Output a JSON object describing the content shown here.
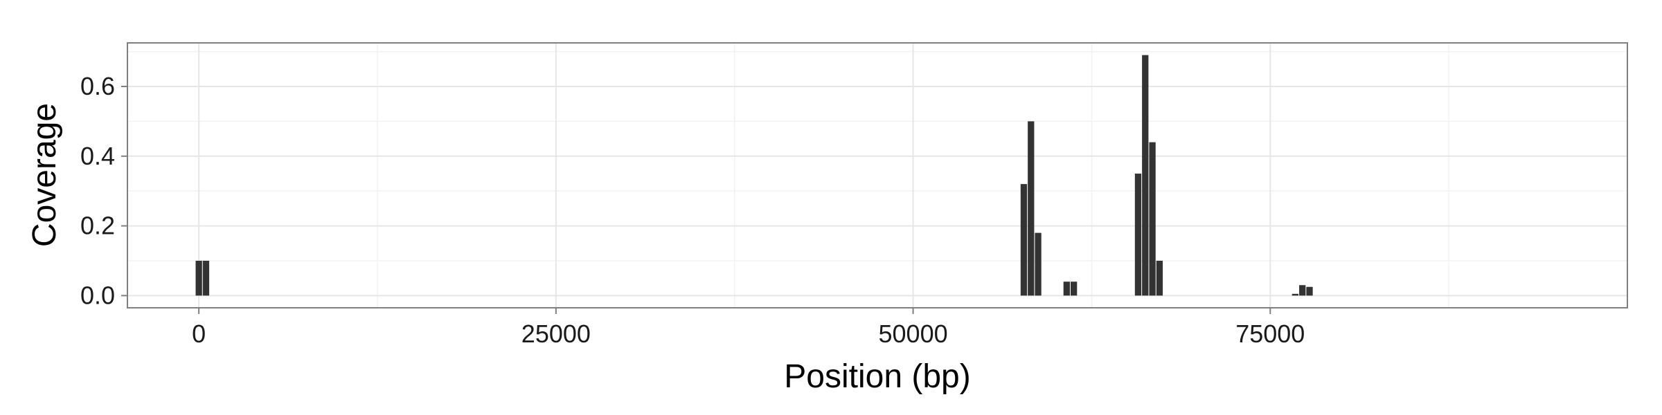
{
  "chart_data": {
    "type": "bar",
    "title": "",
    "xlabel": "Position (bp)",
    "ylabel": "Coverage",
    "xlim": [
      -5000,
      100000
    ],
    "ylim": [
      -0.035,
      0.725
    ],
    "x_ticks": [
      0,
      25000,
      50000,
      75000
    ],
    "x_tick_labels": [
      "0",
      "25000",
      "50000",
      "75000"
    ],
    "x_minor_ticks": [
      12500,
      37500,
      62500,
      87500
    ],
    "y_ticks": [
      0.0,
      0.2,
      0.4,
      0.6
    ],
    "y_tick_labels": [
      "0.0",
      "0.2",
      "0.4",
      "0.6"
    ],
    "y_minor_ticks": [
      0.1,
      0.3,
      0.5,
      0.7
    ],
    "grid": true,
    "legend": "none",
    "bin_width": 500,
    "bar_color": "#333333",
    "series": [
      {
        "x": [
          0,
          500,
          57750,
          58250,
          58750,
          60750,
          61250,
          65750,
          66250,
          66750,
          67250,
          76750,
          77250,
          77750
        ],
        "values": [
          0.1,
          0.1,
          0.32,
          0.5,
          0.18,
          0.04,
          0.04,
          0.35,
          0.69,
          0.44,
          0.1,
          0.005,
          0.03,
          0.025
        ]
      }
    ]
  }
}
